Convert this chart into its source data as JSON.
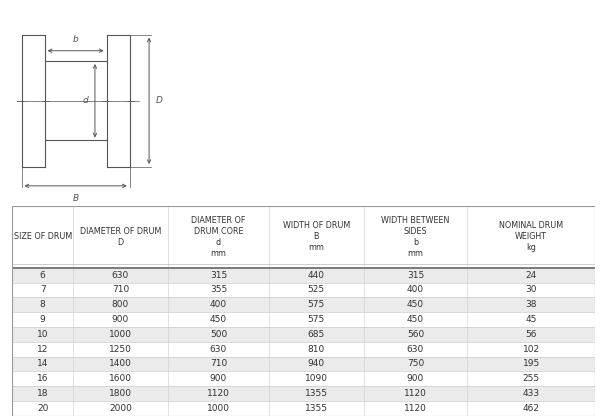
{
  "col_headers": [
    [
      "SIZE OF DRUM",
      "",
      "",
      ""
    ],
    [
      "DIAMETER OF DRUM",
      "D",
      "",
      ""
    ],
    [
      "DIAMETER OF",
      "DRUM CORE",
      "d",
      "mm"
    ],
    [
      "WIDTH OF DRUM",
      "B",
      "mm",
      ""
    ],
    [
      "WIDTH BETWEEN",
      "SIDES",
      "b",
      "mm"
    ],
    [
      "NOMINAL DRUM",
      "WEIGHT",
      "kg",
      ""
    ]
  ],
  "rows": [
    [
      6,
      630,
      315,
      440,
      315,
      24
    ],
    [
      7,
      710,
      355,
      525,
      400,
      30
    ],
    [
      8,
      800,
      400,
      575,
      450,
      38
    ],
    [
      9,
      900,
      450,
      575,
      450,
      45
    ],
    [
      10,
      1000,
      500,
      685,
      560,
      56
    ],
    [
      12,
      1250,
      630,
      810,
      630,
      102
    ],
    [
      14,
      1400,
      710,
      940,
      750,
      195
    ],
    [
      16,
      1600,
      900,
      1090,
      900,
      255
    ],
    [
      18,
      1800,
      1120,
      1355,
      1120,
      433
    ],
    [
      20,
      2000,
      1000,
      1355,
      1120,
      462
    ]
  ],
  "row_stripe_color": "#ebebeb",
  "row_white_color": "#ffffff",
  "border_color": "#999999",
  "text_color": "#333333",
  "line_color": "#555555"
}
